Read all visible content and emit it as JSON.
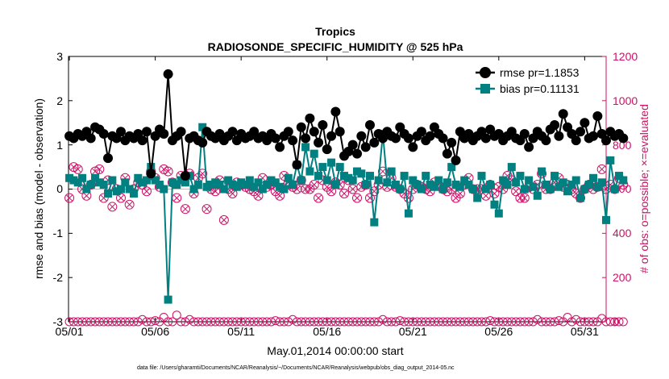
{
  "chart_data": {
    "type": "line",
    "title": "Tropics",
    "subtitle": "RADIOSONDE_SPECIFIC_HUMIDITY @ 525 hPa",
    "xlabel": "May.01,2014 00:00:00 start",
    "ylabel_left": "rmse and bias (model - observation)",
    "ylabel_right": "# of obs: o=possible; ×=evaluated",
    "footnote": "data file: /Users/gharamti/Documents/NCAR/Reanalysis/~/Documents/NCAR/Reanalysis/webpub/obs_diag_output_2014-05.nc",
    "x_ticks": [
      "05/01",
      "05/06",
      "05/11",
      "05/16",
      "05/21",
      "05/26",
      "05/31"
    ],
    "x_tick_days": [
      1,
      6,
      11,
      16,
      21,
      26,
      31
    ],
    "xlim": [
      0.95,
      32.25
    ],
    "ylim_left": [
      -3,
      3
    ],
    "yticks_left": [
      "-3",
      "-2",
      "-1",
      "0",
      "1",
      "2",
      "3"
    ],
    "ylim_right": [
      0,
      1200
    ],
    "yticks_right": [
      "0",
      "200",
      "400",
      "600",
      "800",
      "1000",
      "1200"
    ],
    "legend": {
      "position": "top-right",
      "entries": [
        "rmse pr=1.1853",
        "bias pr=0.11131"
      ]
    },
    "colors": {
      "rmse": "#000000",
      "bias": "#008080",
      "obs": "#cc1166"
    },
    "step_days": 0.25,
    "series": [
      {
        "name": "rmse",
        "values": [
          1.2,
          1.15,
          1.25,
          1.2,
          1.3,
          1.15,
          1.4,
          1.35,
          1.25,
          0.7,
          1.2,
          1.15,
          1.3,
          1.1,
          1.2,
          1.15,
          1.25,
          1.1,
          1.3,
          0.35,
          1.2,
          1.35,
          1.25,
          2.6,
          1.1,
          1.2,
          1.3,
          0.3,
          1.15,
          1.2,
          1.1,
          1.05,
          1.3,
          1.2,
          1.15,
          1.25,
          1.1,
          1.2,
          1.3,
          1.1,
          1.25,
          1.15,
          1.2,
          1.3,
          1.15,
          1.2,
          1.1,
          1.25,
          1.15,
          0.95,
          1.2,
          1.3,
          1.1,
          0.55,
          1.4,
          1.15,
          1.6,
          1.3,
          1.05,
          1.45,
          0.9,
          1.2,
          1.75,
          1.3,
          0.75,
          0.85,
          1.0,
          0.8,
          1.2,
          0.95,
          1.45,
          1.05,
          1.25,
          1.15,
          1.3,
          1.2,
          1.15,
          1.4,
          1.25,
          1.15,
          0.95,
          1.2,
          1.3,
          1.1,
          1.2,
          1.4,
          1.25,
          1.15,
          0.8,
          1.05,
          0.65,
          1.3,
          1.15,
          1.25,
          1.1,
          1.2,
          1.3,
          1.15,
          1.35,
          1.2,
          1.25,
          1.1,
          1.2,
          1.3,
          1.15,
          1.1,
          1.25,
          0.95,
          1.15,
          1.3,
          1.2,
          1.1,
          1.35,
          1.45,
          1.2,
          1.7,
          1.4,
          1.25,
          1.1,
          1.3,
          1.5,
          1.15,
          1.2,
          1.65,
          1.25,
          1.1,
          1.3,
          1.2,
          1.25,
          1.15
        ]
      },
      {
        "name": "bias",
        "values": [
          0.25,
          0.2,
          0.15,
          0.25,
          0.0,
          0.1,
          0.25,
          0.15,
          0.1,
          -0.1,
          0.2,
          -0.05,
          0.0,
          0.15,
          0.0,
          -0.1,
          0.25,
          0.15,
          0.2,
          0.5,
          0.2,
          0.1,
          0.0,
          -2.5,
          0.15,
          0.1,
          0.2,
          0.15,
          0.3,
          0.0,
          0.1,
          1.4,
          0.05,
          0.1,
          0.15,
          0.1,
          0.0,
          0.2,
          0.1,
          0.05,
          0.15,
          0.1,
          0.2,
          0.05,
          0.15,
          0.0,
          0.1,
          0.2,
          0.15,
          0.05,
          0.0,
          0.25,
          0.1,
          0.55,
          0.2,
          0.95,
          0.4,
          0.8,
          0.3,
          0.5,
          0.2,
          0.6,
          0.1,
          0.5,
          0.3,
          0.25,
          0.2,
          0.4,
          0.35,
          0.1,
          0.3,
          -0.75,
          0.2,
          1.25,
          0.15,
          0.4,
          0.1,
          0.0,
          0.3,
          -0.55,
          0.2,
          0.1,
          0.0,
          0.3,
          0.1,
          0.05,
          0.2,
          0.0,
          0.15,
          0.5,
          0.1,
          0.05,
          0.2,
          0.1,
          0.0,
          -0.2,
          0.3,
          0.0,
          0.1,
          -0.35,
          -0.55,
          0.2,
          0.1,
          0.5,
          0.15,
          0.3,
          0.0,
          0.2,
          0.05,
          -0.15,
          0.4,
          0.1,
          0.0,
          0.3,
          0.05,
          0.15,
          -0.05,
          0.1,
          0.2,
          -0.2,
          0.0,
          0.1,
          0.25,
          0.05,
          0.15,
          -0.7,
          0.65,
          0.0,
          0.3,
          0.2
        ]
      },
      {
        "name": "obs_possible",
        "values": [
          0,
          0,
          0,
          0,
          0,
          0,
          0,
          0,
          0,
          0,
          0,
          0,
          0,
          0,
          0,
          0,
          0,
          10,
          0,
          0,
          5,
          0,
          20,
          0,
          0,
          30,
          0,
          0,
          10,
          0,
          0,
          0,
          0,
          0,
          0,
          0,
          0,
          0,
          0,
          0,
          0,
          0,
          0,
          0,
          0,
          0,
          0,
          0,
          5,
          0,
          0,
          0,
          10,
          0,
          0,
          0,
          0,
          0,
          0,
          0,
          0,
          0,
          0,
          0,
          0,
          0,
          0,
          0,
          0,
          0,
          0,
          0,
          0,
          10,
          0,
          0,
          0,
          5,
          0,
          0,
          0,
          0,
          0,
          0,
          0,
          0,
          0,
          0,
          0,
          0,
          0,
          0,
          0,
          0,
          0,
          0,
          0,
          0,
          5,
          0,
          0,
          0,
          0,
          0,
          0,
          0,
          0,
          0,
          0,
          10,
          0,
          0,
          0,
          0,
          5,
          0,
          20,
          0,
          10,
          0,
          0,
          0,
          0,
          0,
          15,
          0,
          0,
          0,
          0,
          0
        ]
      },
      {
        "name": "obs_evaluated",
        "values": [
          560,
          700,
          690,
          600,
          570,
          620,
          680,
          690,
          560,
          640,
          520,
          600,
          560,
          650,
          530,
          600,
          630,
          620,
          590,
          680,
          650,
          610,
          690,
          680,
          630,
          560,
          660,
          510,
          670,
          580,
          650,
          670,
          510,
          600,
          590,
          640,
          460,
          600,
          580,
          630,
          620,
          610,
          600,
          590,
          570,
          650,
          610,
          620,
          590,
          570,
          660,
          630,
          610,
          600,
          640,
          600,
          600,
          620,
          560,
          640,
          610,
          590,
          630,
          620,
          580,
          640,
          600,
          560,
          610,
          620,
          560,
          590,
          620,
          680,
          610,
          650,
          610,
          600,
          580,
          560,
          600,
          620,
          610,
          600,
          590,
          630,
          620,
          600,
          590,
          600,
          560,
          580,
          620,
          650,
          600,
          600,
          600,
          570,
          620,
          580,
          610,
          600,
          660,
          640,
          590,
          560,
          560,
          610,
          600,
          620,
          670,
          600,
          600,
          630,
          650,
          610,
          620,
          600,
          580,
          560,
          600,
          620,
          600,
          610,
          690,
          600,
          620,
          600,
          650,
          620
        ]
      }
    ]
  }
}
